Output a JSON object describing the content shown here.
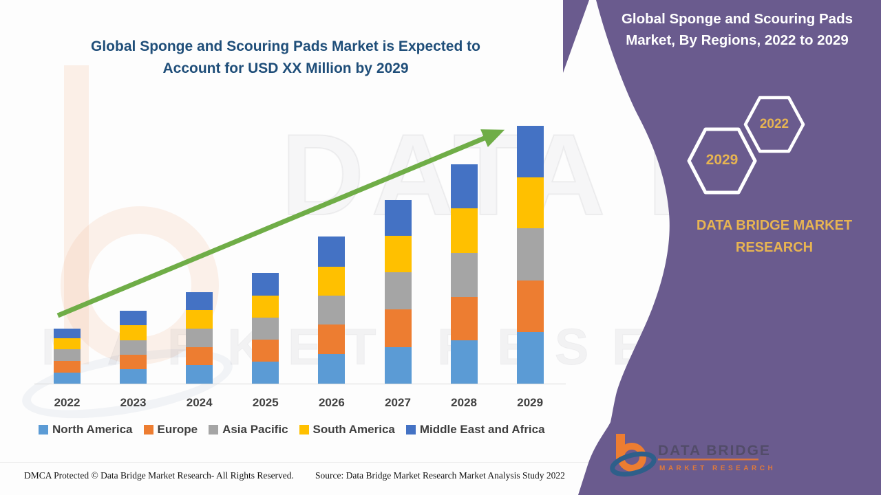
{
  "header": {
    "left_title_line1": "Global Sponge and Scouring Pads Market is Expected to",
    "left_title_line2": "Account for USD XX Million by 2029"
  },
  "panel": {
    "bg_color": "#6A5B8E",
    "title_line1": "Global Sponge and Scouring Pads",
    "title_line2": "Market, By Regions, 2022 to 2029",
    "hexagon_back_label": "2029",
    "hexagon_front_label": "2022",
    "brand_line1": "DATA BRIDGE MARKET",
    "brand_line2": "RESEARCH",
    "accent_color": "#E7B452"
  },
  "watermark": {
    "big_text": "DATA BRIDGE",
    "row_text": "MARKET RESEARCH"
  },
  "logo": {
    "name_text": "DATA BRIDGE",
    "subtitle_text": "MARKET RESEARCH"
  },
  "footer": {
    "left_text": "DMCA Protected © Data Bridge Market Research- All Rights Reserved.",
    "right_text": "Source: Data Bridge Market Research Market Analysis Study 2022"
  },
  "chart_data": {
    "type": "bar",
    "stacked": true,
    "title": "Global Sponge and Scouring Pads Market, By Regions, 2022 to 2029",
    "categories": [
      "2022",
      "2023",
      "2024",
      "2025",
      "2026",
      "2027",
      "2028",
      "2029"
    ],
    "series": [
      {
        "name": "North America",
        "color": "#5B9BD5",
        "values": [
          16,
          21,
          27,
          32,
          43,
          53,
          63,
          75
        ]
      },
      {
        "name": "Europe",
        "color": "#ED7D31",
        "values": [
          17,
          21,
          26,
          32,
          43,
          55,
          63,
          75
        ]
      },
      {
        "name": "Asia Pacific",
        "color": "#A5A5A5",
        "values": [
          17,
          21,
          27,
          32,
          42,
          54,
          64,
          76
        ]
      },
      {
        "name": "South America",
        "color": "#FFC000",
        "values": [
          16,
          22,
          27,
          32,
          42,
          53,
          65,
          74
        ]
      },
      {
        "name": "Middle East and Africa",
        "color": "#4472C4",
        "values": [
          14,
          21,
          26,
          33,
          44,
          52,
          64,
          75
        ]
      }
    ],
    "totals": [
      80,
      106,
      133,
      161,
      214,
      267,
      319,
      375
    ],
    "ylim": [
      0,
      400
    ],
    "y_axis_visible": false,
    "grid": false,
    "legend_position": "bottom",
    "trend_arrow": {
      "color": "#6FAD47",
      "from_category": "2022",
      "to_category": "2029"
    }
  }
}
